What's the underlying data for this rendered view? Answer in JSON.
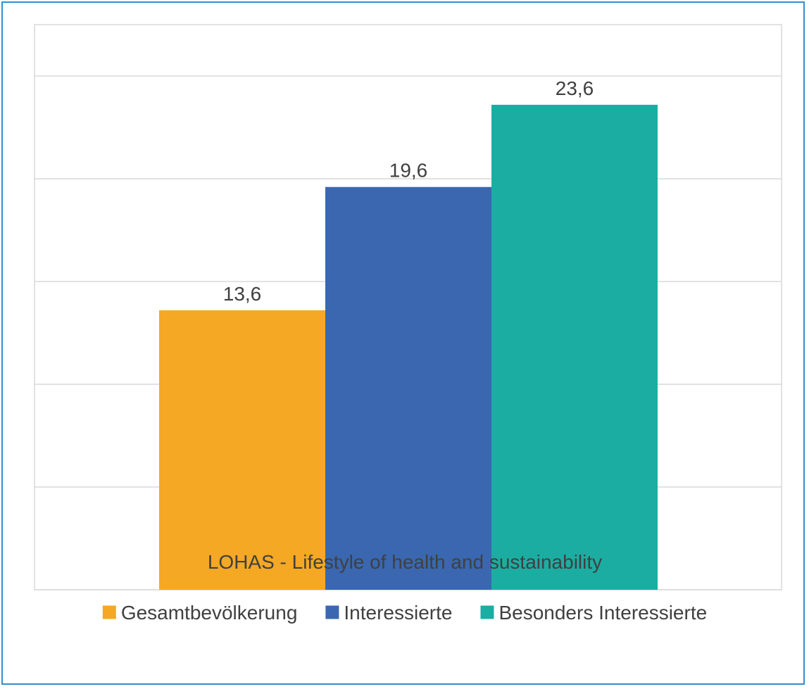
{
  "chart_data": {
    "type": "bar",
    "categories": [
      "LOHAS - Lifestyle of health and sustainability"
    ],
    "series": [
      {
        "name": "Gesamtbevölkerung",
        "values": [
          13.6
        ],
        "color": "#F5A823",
        "label": "13,6"
      },
      {
        "name": "Interessierte",
        "values": [
          19.6
        ],
        "color": "#3A67B0",
        "label": "19,6"
      },
      {
        "name": "Besonders Interessierte",
        "values": [
          23.6
        ],
        "color": "#1CADA2",
        "label": "23,6"
      }
    ],
    "ylim": [
      0,
      27.5
    ],
    "gridlines": [
      0,
      5,
      10,
      15,
      20,
      25
    ],
    "grid": true,
    "y_tick_labels_shown": false,
    "legend_position": "bottom",
    "title": "",
    "xlabel": "",
    "ylabel": ""
  },
  "colors": {
    "frame_border": "#2f8fd1",
    "grid": "#d9d9d9",
    "text": "#404040"
  }
}
